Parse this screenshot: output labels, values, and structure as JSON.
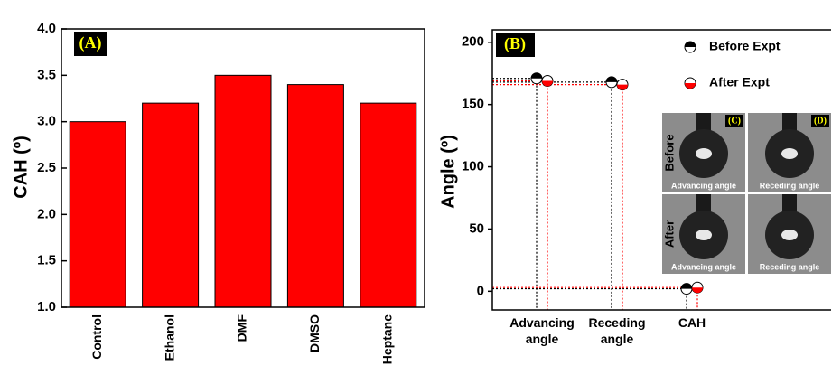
{
  "chart_data": [
    {
      "type": "bar",
      "annotation": "(A)",
      "y_label": "CAH (º)",
      "categories": [
        "Control",
        "Ethanol",
        "DMF",
        "DMSO",
        "Heptane"
      ],
      "values": [
        3.0,
        3.2,
        3.5,
        3.4,
        3.2
      ],
      "color": "#ff0000",
      "ylim": [
        1.0,
        4.0
      ],
      "yticks": [
        {
          "value": 1.0,
          "label": "1.0"
        },
        1.5,
        {
          "value": 2.0,
          "label": "2.0"
        },
        2.5,
        {
          "value": 3.0,
          "label": "3.0"
        },
        3.5,
        {
          "value": 4.0,
          "label": "4.0"
        }
      ]
    },
    {
      "type": "scatter",
      "annotation": "(B)",
      "y_label": "Angle (º)",
      "categories": [
        "Advancing angle",
        "Receding angle",
        "CAH"
      ],
      "series": [
        {
          "name": "Before Expt",
          "color": "#000000",
          "values": [
            171,
            168,
            2
          ]
        },
        {
          "name": "After Expt",
          "color": "#ff0000",
          "values": [
            169,
            166,
            3
          ]
        }
      ],
      "ylim": [
        -15,
        210
      ],
      "yticks": [
        0,
        50,
        100,
        150,
        200
      ],
      "inset": {
        "labels": [
          "(C)",
          "(D)"
        ],
        "rows": [
          "Before",
          "After"
        ],
        "captions": [
          [
            "Advancing angle",
            "Receding angle"
          ],
          [
            "Advancing angle",
            "Receding angle"
          ]
        ]
      }
    }
  ]
}
